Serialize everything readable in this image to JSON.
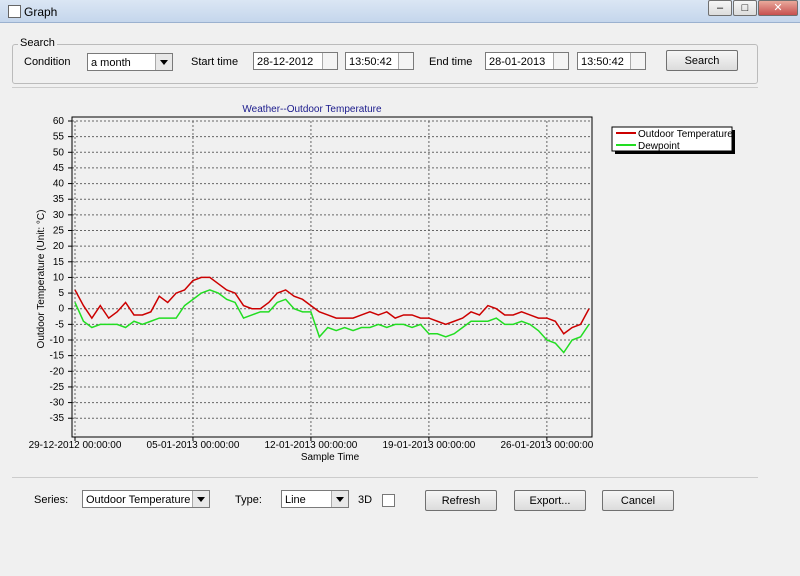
{
  "window": {
    "title": "Graph"
  },
  "search": {
    "legend": "Search",
    "condition_label": "Condition",
    "condition_value": "a month",
    "start_label": "Start time",
    "start_date": "28-12-2012",
    "start_time": "13:50:42",
    "end_label": "End time",
    "end_date": "28-01-2013",
    "end_time": "13:50:42",
    "button": "Search"
  },
  "chart_data": {
    "type": "line",
    "title": "Weather--Outdoor Temperature",
    "x_label": "Sample Time",
    "y_label": "Outdoor Temperature (Unit: °C)",
    "x": [
      "29-12-2012 00:00:00",
      "29-12-2012 12:00:00",
      "30-12-2012 00:00:00",
      "30-12-2012 12:00:00",
      "31-12-2012 00:00:00",
      "31-12-2012 12:00:00",
      "01-01-2013 00:00:00",
      "01-01-2013 12:00:00",
      "02-01-2013 00:00:00",
      "02-01-2013 12:00:00",
      "03-01-2013 00:00:00",
      "03-01-2013 12:00:00",
      "04-01-2013 00:00:00",
      "04-01-2013 12:00:00",
      "05-01-2013 00:00:00",
      "05-01-2013 12:00:00",
      "06-01-2013 00:00:00",
      "06-01-2013 12:00:00",
      "07-01-2013 00:00:00",
      "07-01-2013 12:00:00",
      "08-01-2013 00:00:00",
      "08-01-2013 12:00:00",
      "09-01-2013 00:00:00",
      "09-01-2013 12:00:00",
      "10-01-2013 00:00:00",
      "10-01-2013 12:00:00",
      "11-01-2013 00:00:00",
      "11-01-2013 12:00:00",
      "12-01-2013 00:00:00",
      "12-01-2013 12:00:00",
      "13-01-2013 00:00:00",
      "13-01-2013 12:00:00",
      "14-01-2013 00:00:00",
      "14-01-2013 12:00:00",
      "15-01-2013 00:00:00",
      "15-01-2013 12:00:00",
      "16-01-2013 00:00:00",
      "16-01-2013 12:00:00",
      "17-01-2013 00:00:00",
      "17-01-2013 12:00:00",
      "18-01-2013 00:00:00",
      "18-01-2013 12:00:00",
      "19-01-2013 00:00:00",
      "19-01-2013 12:00:00",
      "20-01-2013 00:00:00",
      "20-01-2013 12:00:00",
      "21-01-2013 00:00:00",
      "21-01-2013 12:00:00",
      "22-01-2013 00:00:00",
      "22-01-2013 12:00:00",
      "23-01-2013 00:00:00",
      "23-01-2013 12:00:00",
      "24-01-2013 00:00:00",
      "24-01-2013 12:00:00",
      "25-01-2013 00:00:00",
      "25-01-2013 12:00:00",
      "26-01-2013 00:00:00",
      "26-01-2013 12:00:00",
      "27-01-2013 00:00:00",
      "27-01-2013 12:00:00",
      "28-01-2013 00:00:00",
      "28-01-2013 12:00:00"
    ],
    "series": [
      {
        "name": "Outdoor Temperature",
        "color": "#cc0000",
        "values": [
          6,
          1,
          -3,
          1,
          -3,
          -1,
          2,
          -2,
          -2,
          -1,
          4,
          2,
          5,
          6,
          9,
          10,
          10,
          8,
          6,
          5,
          1,
          0,
          0,
          2,
          5,
          6,
          4,
          3,
          1,
          -1,
          -2,
          -3,
          -3,
          -3,
          -2,
          -1,
          -2,
          -1,
          -3,
          -2,
          -2,
          -3,
          -3,
          -4,
          -5,
          -4,
          -3,
          -1,
          -2,
          1,
          0,
          -2,
          -2,
          -1,
          -2,
          -3,
          -3,
          -4,
          -8,
          -6,
          -5,
          0
        ]
      },
      {
        "name": "Dewpoint",
        "color": "#22dd22",
        "values": [
          2,
          -4,
          -6,
          -5,
          -5,
          -5,
          -6,
          -4,
          -5,
          -4,
          -3,
          -3,
          -3,
          1,
          3,
          5,
          6,
          5,
          3,
          2,
          -3,
          -2,
          -1,
          -1,
          2,
          3,
          0,
          -1,
          -1,
          -9,
          -6,
          -7,
          -6,
          -7,
          -6,
          -6,
          -5,
          -6,
          -5,
          -5,
          -6,
          -5,
          -8,
          -8,
          -9,
          -8,
          -6,
          -4,
          -4,
          -4,
          -3,
          -5,
          -5,
          -4,
          -5,
          -7,
          -10,
          -11,
          -14,
          -10,
          -9,
          -5
        ]
      }
    ],
    "xlim": [
      "29-12-2012 00:00:00",
      "28-01-2013 12:00:00"
    ],
    "xticks": [
      "29-12-2012 00:00:00",
      "05-01-2013 00:00:00",
      "12-01-2013 00:00:00",
      "19-01-2013 00:00:00",
      "26-01-2013 00:00:00"
    ],
    "ylim": [
      -41,
      60
    ],
    "yticks": [
      60,
      55,
      50,
      45,
      40,
      35,
      30,
      25,
      20,
      15,
      10,
      5,
      0,
      -5,
      -10,
      -15,
      -20,
      -25,
      -30,
      -35
    ],
    "grid": true,
    "legend": "right"
  },
  "controls": {
    "series_label": "Series:",
    "series_value": "Outdoor Temperature",
    "type_label": "Type:",
    "type_value": "Line",
    "three_d_label": "3D",
    "refresh": "Refresh",
    "export": "Export...",
    "cancel": "Cancel"
  }
}
